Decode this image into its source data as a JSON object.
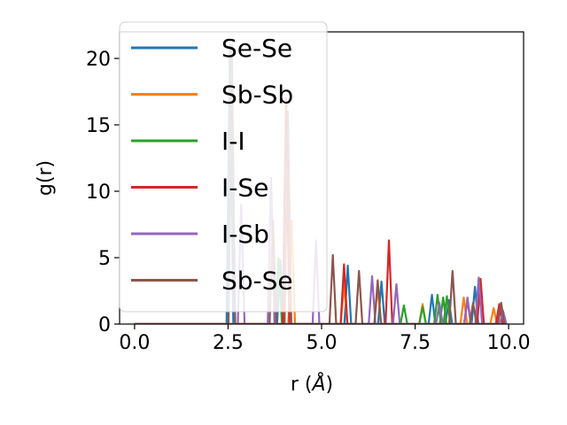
{
  "chart_data": {
    "type": "line",
    "xlabel": "r (",
    "xlabel_unit": "Å",
    "xlabel_close": ")",
    "ylabel": "g(r)",
    "xlim": [
      -0.4,
      10.4
    ],
    "ylim": [
      0,
      22
    ],
    "xticks": [
      0.0,
      2.5,
      5.0,
      7.5,
      10.0
    ],
    "xtick_labels": [
      "0.0",
      "2.5",
      "5.0",
      "7.5",
      "10.0"
    ],
    "yticks": [
      0,
      5,
      10,
      15,
      20
    ],
    "ytick_labels": [
      "0",
      "5",
      "10",
      "15",
      "20"
    ],
    "grid": false,
    "legend_position": "upper-left",
    "series": [
      {
        "name": "Se-Se",
        "color": "#1f77b4",
        "peaks": [
          [
            2.55,
            21.0
          ],
          [
            3.9,
            4.8
          ],
          [
            5.7,
            4.4
          ],
          [
            6.6,
            3.2
          ],
          [
            7.95,
            2.2
          ],
          [
            8.4,
            1.8
          ],
          [
            9.1,
            2.8
          ]
        ]
      },
      {
        "name": "Sb-Sb",
        "color": "#ff7f0e",
        "peaks": [
          [
            4.2,
            7.8
          ],
          [
            5.6,
            3.0
          ],
          [
            6.5,
            2.8
          ],
          [
            7.7,
            1.5
          ],
          [
            8.8,
            2.0
          ],
          [
            9.6,
            1.2
          ]
        ]
      },
      {
        "name": "I-I",
        "color": "#2ca02c",
        "peaks": [
          [
            3.85,
            5.0
          ],
          [
            7.2,
            1.4
          ],
          [
            7.7,
            1.3
          ],
          [
            8.1,
            2.2
          ],
          [
            8.25,
            2.0
          ],
          [
            8.35,
            2.1
          ]
        ]
      },
      {
        "name": "I-Se",
        "color": "#d62728",
        "peaks": [
          [
            4.05,
            17.0
          ],
          [
            5.6,
            4.5
          ],
          [
            6.8,
            6.3
          ],
          [
            8.9,
            1.8
          ],
          [
            9.25,
            3.4
          ],
          [
            9.75,
            1.5
          ]
        ]
      },
      {
        "name": "I-Sb",
        "color": "#9467bd",
        "peaks": [
          [
            2.85,
            9.0
          ],
          [
            3.65,
            11.0
          ],
          [
            4.85,
            6.3
          ],
          [
            6.35,
            3.6
          ],
          [
            7.0,
            3.0
          ],
          [
            8.15,
            1.6
          ],
          [
            8.9,
            2.0
          ],
          [
            9.2,
            3.5
          ],
          [
            9.85,
            1.0
          ]
        ]
      },
      {
        "name": "Sb-Se",
        "color": "#8c564b",
        "peaks": [
          [
            2.6,
            21.0
          ],
          [
            3.7,
            7.8
          ],
          [
            4.1,
            16.0
          ],
          [
            5.3,
            5.2
          ],
          [
            6.0,
            4.0
          ],
          [
            6.5,
            3.3
          ],
          [
            8.5,
            4.0
          ],
          [
            9.05,
            1.6
          ],
          [
            9.8,
            1.6
          ]
        ]
      }
    ]
  }
}
